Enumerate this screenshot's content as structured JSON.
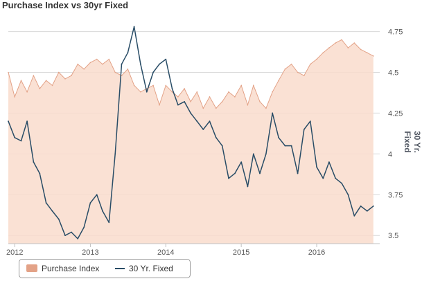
{
  "chart_data": {
    "type": "area",
    "title": "Purchase Index vs 30yr Fixed",
    "x_range": [
      "2011-12-01",
      "2016-11-01"
    ],
    "x_ticks": [
      "2012",
      "2013",
      "2014",
      "2015",
      "2016"
    ],
    "y_right": {
      "label": "30 Yr. Fixed",
      "range": [
        3.45,
        4.85
      ],
      "ticks": [
        "3.5",
        "3.75",
        "4",
        "4.25",
        "4.5",
        "4.75"
      ]
    },
    "grid": true,
    "legend_position": "bottom-left",
    "series": [
      {
        "name": "Purchase Index",
        "type": "area",
        "color": "#e3a287",
        "fill": "#f9dccd",
        "x": [
          "2011-12-01",
          "2012-01-01",
          "2012-02-01",
          "2012-03-01",
          "2012-04-01",
          "2012-05-01",
          "2012-06-01",
          "2012-07-01",
          "2012-08-01",
          "2012-09-01",
          "2012-10-01",
          "2012-11-01",
          "2012-12-01",
          "2013-01-01",
          "2013-02-01",
          "2013-03-01",
          "2013-04-01",
          "2013-05-01",
          "2013-06-01",
          "2013-07-01",
          "2013-08-01",
          "2013-09-01",
          "2013-10-01",
          "2013-11-01",
          "2013-12-01",
          "2014-01-01",
          "2014-02-01",
          "2014-03-01",
          "2014-04-01",
          "2014-05-01",
          "2014-06-01",
          "2014-07-01",
          "2014-08-01",
          "2014-09-01",
          "2014-10-01",
          "2014-11-01",
          "2014-12-01",
          "2015-01-01",
          "2015-02-01",
          "2015-03-01",
          "2015-04-01",
          "2015-05-01",
          "2015-06-01",
          "2015-07-01",
          "2015-08-01",
          "2015-09-01",
          "2015-10-01",
          "2015-11-01",
          "2015-12-01",
          "2016-01-01",
          "2016-02-01",
          "2016-03-01",
          "2016-04-01",
          "2016-05-01",
          "2016-06-01",
          "2016-07-01",
          "2016-08-01",
          "2016-09-01",
          "2016-10-01"
        ],
        "values": [
          4.5,
          4.35,
          4.45,
          4.38,
          4.48,
          4.4,
          4.45,
          4.42,
          4.5,
          4.46,
          4.48,
          4.55,
          4.52,
          4.56,
          4.58,
          4.55,
          4.58,
          4.5,
          4.48,
          4.52,
          4.42,
          4.38,
          4.4,
          4.42,
          4.3,
          4.42,
          4.38,
          4.35,
          4.4,
          4.32,
          4.38,
          4.28,
          4.35,
          4.28,
          4.32,
          4.38,
          4.35,
          4.42,
          4.3,
          4.42,
          4.32,
          4.28,
          4.38,
          4.45,
          4.52,
          4.55,
          4.5,
          4.48,
          4.55,
          4.58,
          4.62,
          4.65,
          4.68,
          4.7,
          4.65,
          4.68,
          4.64,
          4.62,
          4.6
        ]
      },
      {
        "name": "30 Yr. Fixed",
        "type": "line",
        "color": "#284c66",
        "x": [
          "2011-12-01",
          "2012-01-01",
          "2012-02-01",
          "2012-03-01",
          "2012-04-01",
          "2012-05-01",
          "2012-06-01",
          "2012-07-01",
          "2012-08-01",
          "2012-09-01",
          "2012-10-01",
          "2012-11-01",
          "2012-12-01",
          "2013-01-01",
          "2013-02-01",
          "2013-03-01",
          "2013-04-01",
          "2013-05-01",
          "2013-06-01",
          "2013-07-01",
          "2013-08-01",
          "2013-09-01",
          "2013-10-01",
          "2013-11-01",
          "2013-12-01",
          "2014-01-01",
          "2014-02-01",
          "2014-03-01",
          "2014-04-01",
          "2014-05-01",
          "2014-06-01",
          "2014-07-01",
          "2014-08-01",
          "2014-09-01",
          "2014-10-01",
          "2014-11-01",
          "2014-12-01",
          "2015-01-01",
          "2015-02-01",
          "2015-03-01",
          "2015-04-01",
          "2015-05-01",
          "2015-06-01",
          "2015-07-01",
          "2015-08-01",
          "2015-09-01",
          "2015-10-01",
          "2015-11-01",
          "2015-12-01",
          "2016-01-01",
          "2016-02-01",
          "2016-03-01",
          "2016-04-01",
          "2016-05-01",
          "2016-06-01",
          "2016-07-01",
          "2016-08-01",
          "2016-09-01",
          "2016-10-01"
        ],
        "values": [
          4.2,
          4.1,
          4.08,
          4.2,
          3.95,
          3.88,
          3.7,
          3.65,
          3.6,
          3.5,
          3.52,
          3.48,
          3.55,
          3.7,
          3.75,
          3.65,
          3.58,
          4.0,
          4.55,
          4.62,
          4.78,
          4.55,
          4.38,
          4.5,
          4.55,
          4.58,
          4.4,
          4.3,
          4.32,
          4.25,
          4.2,
          4.15,
          4.2,
          4.1,
          4.05,
          3.85,
          3.88,
          3.95,
          3.8,
          4.0,
          3.88,
          4.0,
          4.25,
          4.1,
          4.05,
          4.05,
          3.88,
          4.15,
          4.2,
          3.92,
          3.85,
          3.95,
          3.85,
          3.82,
          3.75,
          3.62,
          3.68,
          3.65,
          3.68
        ]
      }
    ]
  },
  "legend": {
    "items": [
      {
        "label": "Purchase Index",
        "color": "#e3a287"
      },
      {
        "label": "30 Yr. Fixed",
        "color": "#284c66"
      }
    ]
  }
}
